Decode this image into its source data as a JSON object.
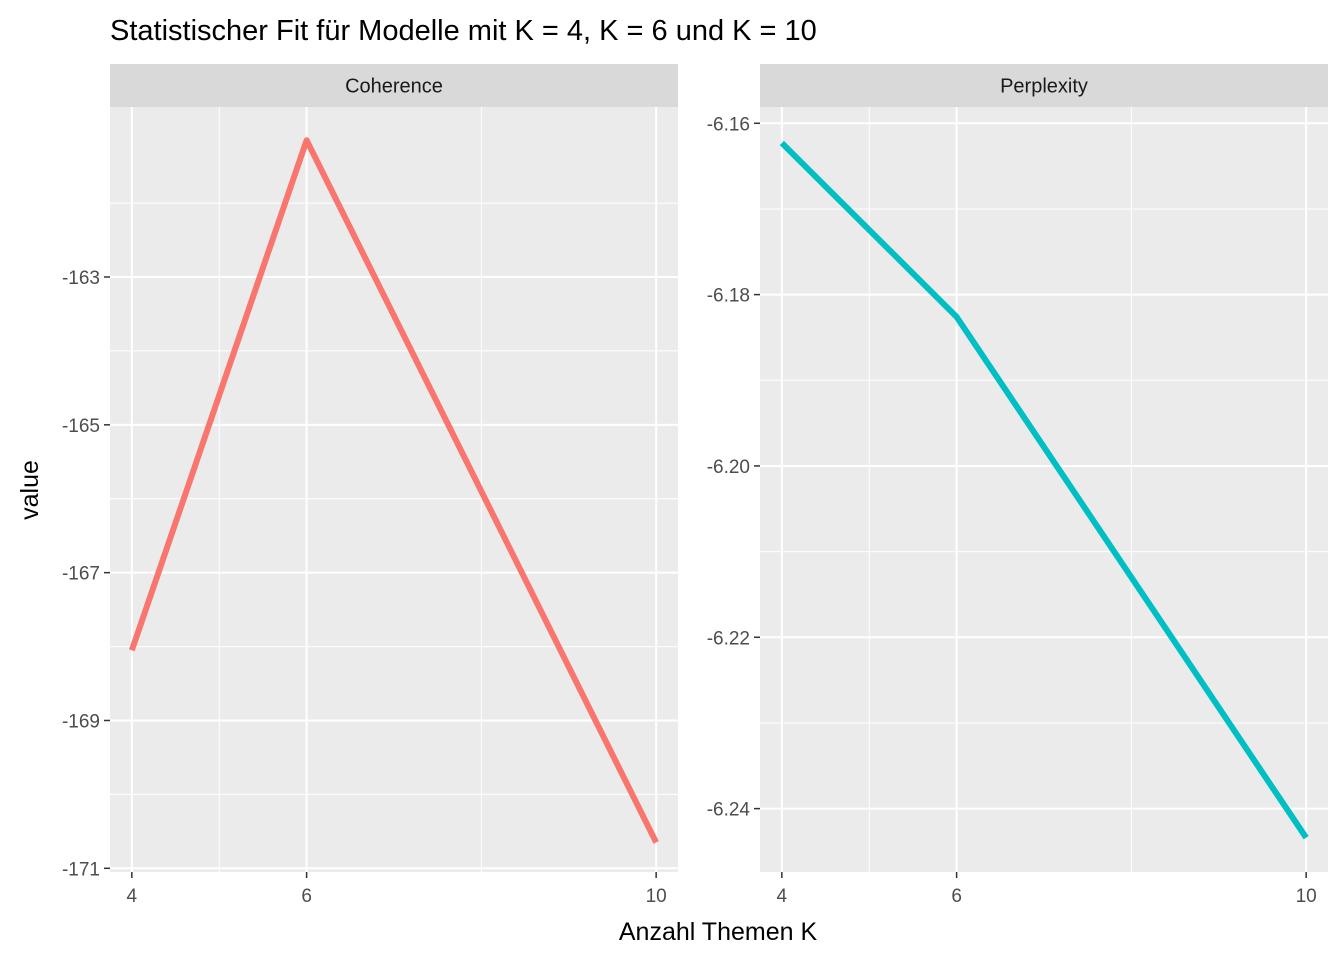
{
  "chart_data": {
    "type": "line",
    "title": "Statistischer Fit für Modelle mit K = 4, K = 6 und K = 10",
    "xlabel": "Anzahl Themen K",
    "ylabel": "value",
    "grid": true,
    "legend": "none",
    "facets": [
      {
        "name": "Coherence",
        "x": [
          4,
          6,
          10
        ],
        "y": [
          -168.05,
          -161.15,
          -170.65
        ],
        "color": "#F8766D",
        "xlim": [
          3.75,
          10.25
        ],
        "ylim": [
          -171.05,
          -160.7
        ],
        "x_ticks": [
          4,
          6,
          10
        ],
        "x_tick_labels": [
          "4",
          "6",
          "10"
        ],
        "y_ticks": [
          -163,
          -165,
          -167,
          -169,
          -171
        ],
        "y_tick_labels": [
          "-163",
          "-165",
          "-167",
          "-169",
          "-171"
        ]
      },
      {
        "name": "Perplexity",
        "x": [
          4,
          6,
          10
        ],
        "y": [
          -6.1623,
          -6.1826,
          -6.2434
        ],
        "color": "#00BFC4",
        "xlim": [
          3.75,
          10.25
        ],
        "ylim": [
          -6.2474,
          -6.1581
        ],
        "x_ticks": [
          4,
          6,
          10
        ],
        "x_tick_labels": [
          "4",
          "6",
          "10"
        ],
        "y_ticks": [
          -6.16,
          -6.18,
          -6.2,
          -6.22,
          -6.24
        ],
        "y_tick_labels": [
          "-6.16",
          "-6.18",
          "-6.20",
          "-6.22",
          "-6.24"
        ]
      }
    ]
  }
}
